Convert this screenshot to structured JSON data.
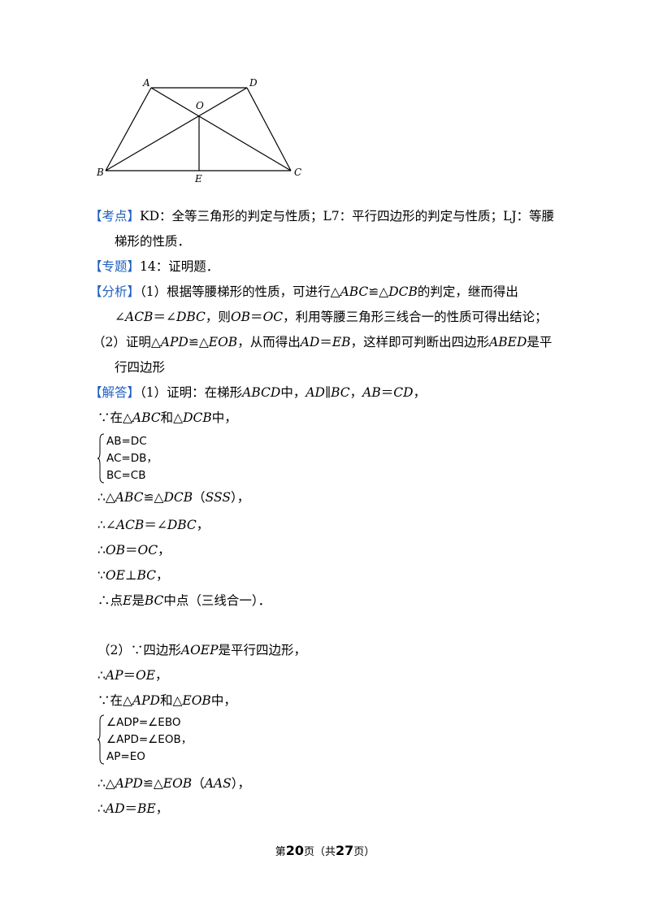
{
  "figure": {
    "labels": {
      "A": "A",
      "D": "D",
      "O": "O",
      "B": "B",
      "E": "E",
      "C": "C"
    }
  },
  "kaodian": {
    "tag": "【考点】",
    "text1": "KD：全等三角形的判定与性质；L7：平行四边形的判定与性质；LJ：等腰",
    "text2": "梯形的性质．"
  },
  "zhuanti": {
    "tag": "【专题】",
    "text": "14：证明题．"
  },
  "fenxi": {
    "tag": "【分析】",
    "p1a": "（1）根据等腰梯形的性质，可进行△",
    "p1b": "ABC",
    "p1c": "≌△",
    "p1d": "DCB",
    "p1e": "的判定，继而得出",
    "p2a": "∠",
    "p2b": "ACB",
    "p2c": "＝∠",
    "p2d": "DBC",
    "p2e": "，则",
    "p2f": "OB",
    "p2g": "＝",
    "p2h": "OC",
    "p2i": "，利用等腰三角形三线合一的性质可得出结论；",
    "p3a": "（2）证明△",
    "p3b": "APD",
    "p3c": "≌△",
    "p3d": "EOB",
    "p3e": "，从而得出",
    "p3f": "AD",
    "p3g": "＝",
    "p3h": "EB",
    "p3i": "，这样即可判断出四边形",
    "p3j": "ABED",
    "p3k": "是平",
    "p4": "行四边形"
  },
  "jieda": {
    "tag": "【解答】",
    "l1a": "（1）证明：在梯形",
    "l1b": "ABCD",
    "l1c": "中，",
    "l1d": "AD∥BC",
    "l1e": "，",
    "l1f": "AB",
    "l1g": "＝",
    "l1h": "CD",
    "l1i": "，",
    "l2a": "∵在△",
    "l2b": "ABC",
    "l2c": "和△",
    "l2d": "DCB",
    "l2e": "中，",
    "sys1": [
      "AB=DC",
      "AC=DB，",
      "BC=CB"
    ],
    "l3a": "∴△",
    "l3b": "ABC",
    "l3c": "≌△",
    "l3d": "DCB",
    "l3e": "（",
    "l3f": "SSS",
    "l3g": "），",
    "l4a": "∴∠",
    "l4b": "ACB",
    "l4c": "＝∠",
    "l4d": "DBC",
    "l4e": "，",
    "l5a": "∴",
    "l5b": "OB",
    "l5c": "＝",
    "l5d": "OC",
    "l5e": "，",
    "l6a": "∵",
    "l6b": "OE",
    "l6c": "⊥",
    "l6d": "BC",
    "l6e": "，",
    "l7a": "∴点",
    "l7b": "E",
    "l7c": "是",
    "l7d": "BC",
    "l7e": "中点（三线合一）．",
    "m1a": "（2）∵四边形",
    "m1b": "AOEP",
    "m1c": "是平行四边形，",
    "m2a": "∴",
    "m2b": "AP",
    "m2c": "＝",
    "m2d": "OE",
    "m2e": "，",
    "m3a": "∵在△",
    "m3b": "APD",
    "m3c": "和△",
    "m3d": "EOB",
    "m3e": "中，",
    "sys2": [
      "∠ADP=∠EBO",
      "∠APD=∠EOB，",
      "AP=EO"
    ],
    "m4a": "∴△",
    "m4b": "APD",
    "m4c": "≌△",
    "m4d": "EOB",
    "m4e": "（",
    "m4f": "AAS",
    "m4g": "），",
    "m5a": "∴",
    "m5b": "AD",
    "m5c": "＝",
    "m5d": "BE",
    "m5e": "，"
  },
  "footer": {
    "pre": "第",
    "page": "20",
    "mid": "页（共",
    "total": "27",
    "post": "页）"
  }
}
